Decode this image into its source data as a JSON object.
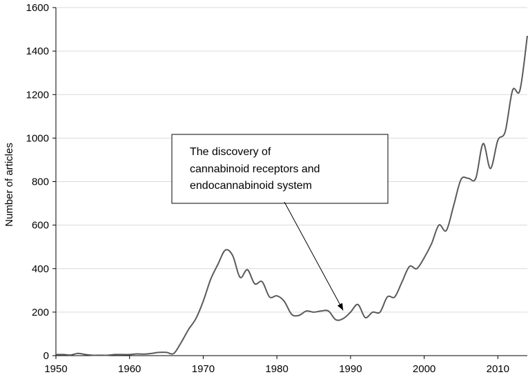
{
  "chart_data": {
    "type": "line",
    "title": "",
    "xlabel": "",
    "ylabel": "Number of articles",
    "xlim": [
      1950,
      2014
    ],
    "ylim": [
      0,
      1600
    ],
    "xticks": [
      1950,
      1960,
      1970,
      1980,
      1990,
      2000,
      2010
    ],
    "yticks": [
      0,
      200,
      400,
      600,
      800,
      1000,
      1200,
      1400,
      1600
    ],
    "grid": "horizontal",
    "legend": "none",
    "line_color": "#595959",
    "series": [
      {
        "x": [
          1950,
          1951,
          1952,
          1953,
          1954,
          1955,
          1956,
          1957,
          1958,
          1959,
          1960,
          1961,
          1962,
          1963,
          1964,
          1965,
          1966,
          1967,
          1968,
          1969,
          1970,
          1971,
          1972,
          1973,
          1974,
          1975,
          1976,
          1977,
          1978,
          1979,
          1980,
          1981,
          1982,
          1983,
          1984,
          1985,
          1986,
          1987,
          1988,
          1989,
          1990,
          1991,
          1992,
          1993,
          1994,
          1995,
          1996,
          1997,
          1998,
          1999,
          2000,
          2001,
          2002,
          2003,
          2004,
          2005,
          2006,
          2007,
          2008,
          2009,
          2010,
          2011,
          2012,
          2013,
          2014
        ],
        "values": [
          5,
          5,
          3,
          10,
          5,
          2,
          2,
          2,
          5,
          5,
          5,
          8,
          7,
          10,
          15,
          15,
          10,
          60,
          120,
          170,
          250,
          350,
          420,
          485,
          460,
          360,
          395,
          330,
          340,
          270,
          275,
          250,
          190,
          185,
          205,
          200,
          205,
          205,
          165,
          170,
          200,
          235,
          175,
          200,
          200,
          270,
          270,
          340,
          410,
          400,
          450,
          515,
          600,
          575,
          690,
          810,
          815,
          815,
          975,
          860,
          990,
          1030,
          1220,
          1220,
          1470
        ]
      }
    ],
    "annotation": {
      "lines": [
        "The discovery of",
        "cannabinoid receptors and",
        "endocannabinoid system"
      ],
      "arrow_to_year": 1989
    }
  }
}
